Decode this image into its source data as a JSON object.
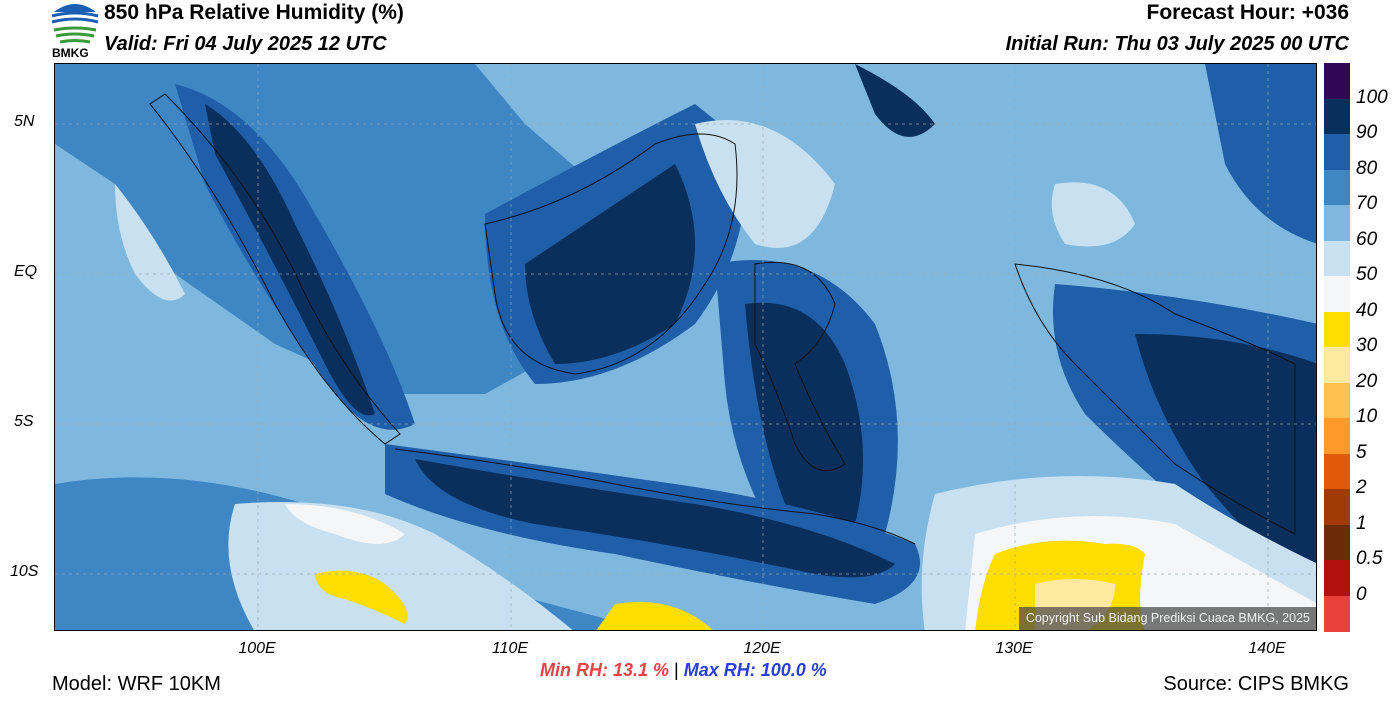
{
  "header": {
    "title": "850 hPa Relative Humidity (%)",
    "valid": "Valid: Fri 04 July 2025 12 UTC",
    "forecast_hour": "Forecast Hour: +036",
    "initial_run": "Initial Run: Thu 03 July 2025 00 UTC"
  },
  "logo": {
    "text": "BMKG",
    "icon": "bmkg-logo-icon"
  },
  "map": {
    "lat_labels": [
      "5N",
      "EQ",
      "5S",
      "10S"
    ],
    "lon_labels": [
      "100E",
      "110E",
      "120E",
      "130E",
      "140E"
    ],
    "copyright": "Copyright Sub Bidang Prediksi Cuaca BMKG, 2025"
  },
  "legend": {
    "labels": [
      "100",
      "90",
      "80",
      "70",
      "60",
      "50",
      "40",
      "30",
      "20",
      "10",
      "5",
      "2",
      "1",
      "0.5",
      "0"
    ],
    "colors": [
      "#2e0854",
      "#0b2f5c",
      "#1f5ea8",
      "#3f86c5",
      "#7fb8de",
      "#c8e0f0",
      "#f5f6f7",
      "#ffde00",
      "#ffe9a0",
      "#ffc24d",
      "#ff9a2a",
      "#e05a0a",
      "#a23a06",
      "#6b2a08",
      "#b31010",
      "#e8413a"
    ]
  },
  "footer": {
    "model": "Model: WRF 10KM",
    "source": "Source: CIPS BMKG",
    "min_rh": "Min RH:  13.1 %",
    "separator": "|",
    "max_rh": "Max RH: 100.0 %"
  }
}
